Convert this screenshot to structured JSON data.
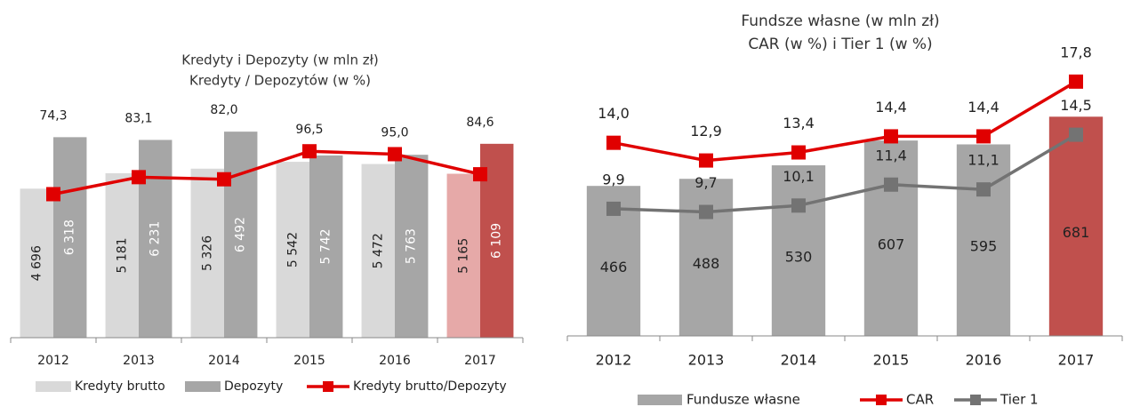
{
  "chart_data": [
    {
      "type": "bar",
      "title": "Kredyty i Depozyty (w mln zł)",
      "subtitle": "Kredyty / Depozytów (w %)",
      "categories": [
        "2012",
        "2013",
        "2014",
        "2015",
        "2016",
        "2017"
      ],
      "ylim": [
        0,
        7000
      ],
      "y2lim": [
        0,
        115
      ],
      "series": [
        {
          "name": "Kredyty brutto",
          "type": "bar",
          "color": "#d9d9d9",
          "colors": [
            "#d9d9d9",
            "#d9d9d9",
            "#d9d9d9",
            "#d9d9d9",
            "#d9d9d9",
            "#e6a9a8"
          ],
          "label_color": "#222222",
          "values": [
            4696,
            5181,
            5326,
            5542,
            5472,
            5165
          ],
          "value_labels": [
            "4 696",
            "5 181",
            "5 326",
            "5 542",
            "5 472",
            "5 165"
          ]
        },
        {
          "name": "Depozyty",
          "type": "bar",
          "color": "#a6a6a6",
          "colors": [
            "#a6a6a6",
            "#a6a6a6",
            "#a6a6a6",
            "#a6a6a6",
            "#a6a6a6",
            "#c0504d"
          ],
          "label_color": "#ffffff",
          "values": [
            6318,
            6231,
            6492,
            5742,
            5763,
            6109
          ],
          "value_labels": [
            "6 318",
            "6 231",
            "6 492",
            "5 742",
            "5 763",
            "6 109"
          ]
        },
        {
          "name": "Kredyty brutto/Depozyty",
          "type": "line",
          "axis": "y2",
          "color": "#e00000",
          "values": [
            74.3,
            83.1,
            82.0,
            96.5,
            95.0,
            84.6
          ],
          "value_labels": [
            "74,3",
            "83,1",
            "82,0",
            "96,5",
            "95,0",
            "84,6"
          ]
        }
      ]
    },
    {
      "type": "bar",
      "title": "Fundsze własne (w mln zł)",
      "subtitle": "CAR (w %) i Tier 1 (w %)",
      "categories": [
        "2012",
        "2013",
        "2014",
        "2015",
        "2016",
        "2017"
      ],
      "ylim": [
        0,
        900
      ],
      "y2lim": [
        2,
        20
      ],
      "series": [
        {
          "name": "Fundusze własne",
          "type": "bar",
          "color": "#a6a6a6",
          "colors": [
            "#a6a6a6",
            "#a6a6a6",
            "#a6a6a6",
            "#a6a6a6",
            "#a6a6a6",
            "#c0504d"
          ],
          "label_color": "#222222",
          "values": [
            466,
            488,
            530,
            607,
            595,
            681
          ]
        },
        {
          "name": "CAR",
          "type": "line",
          "axis": "y2",
          "color": "#e00000",
          "values": [
            14.0,
            12.9,
            13.4,
            14.4,
            14.4,
            17.8
          ],
          "value_labels": [
            "14,0",
            "12,9",
            "13,4",
            "14,4",
            "14,4",
            "17,8"
          ]
        },
        {
          "name": "Tier 1",
          "type": "line",
          "axis": "y2",
          "color": "#737373",
          "values": [
            9.9,
            9.7,
            10.1,
            11.4,
            11.1,
            14.5
          ],
          "value_labels": [
            "9,9",
            "9,7",
            "10,1",
            "11,4",
            "11,1",
            "14,5"
          ]
        }
      ]
    }
  ]
}
